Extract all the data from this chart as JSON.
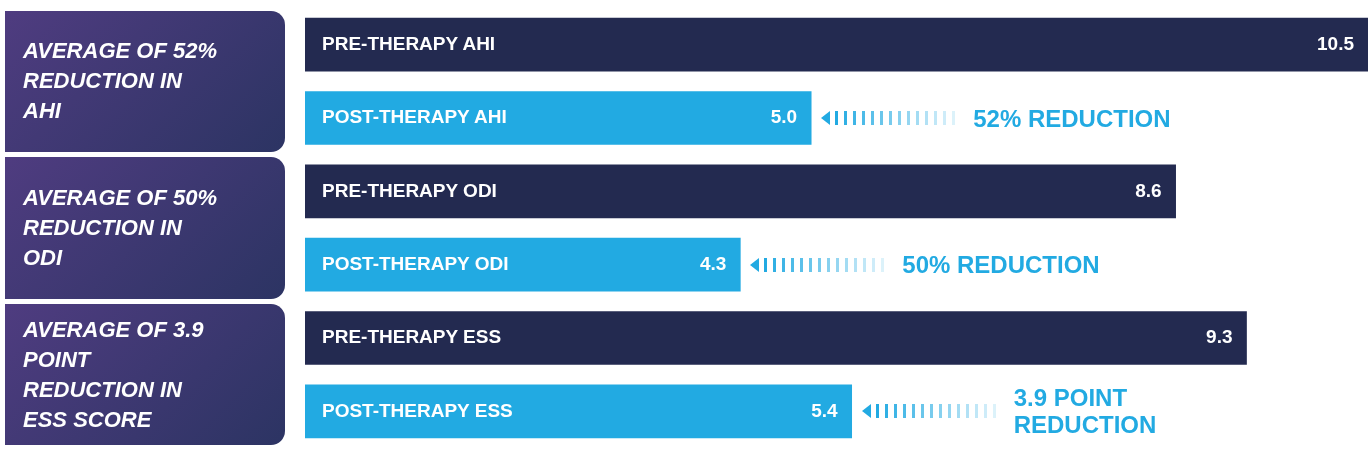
{
  "chart_data": {
    "type": "bar",
    "orientation": "horizontal",
    "categories": [
      "PRE-THERAPY AHI",
      "POST-THERAPY AHI",
      "PRE-THERAPY ODI",
      "POST-THERAPY ODI",
      "PRE-THERAPY ESS",
      "POST-THERAPY ESS"
    ],
    "values": [
      10.5,
      5.0,
      8.6,
      4.3,
      9.3,
      5.4
    ],
    "value_labels": [
      "10.5",
      "5.0",
      "8.6",
      "4.3",
      "9.3",
      "5.4"
    ],
    "colors": [
      "#232a50",
      "#22aae2",
      "#232a50",
      "#22aae2",
      "#232a50",
      "#22aae2"
    ],
    "xlim": [
      0,
      10.5
    ],
    "legend": false,
    "annotations": [
      "AVERAGE OF 52% REDUCTION IN AHI",
      "AVERAGE OF 50% REDUCTION IN ODI",
      "AVERAGE OF 3.9 POINT REDUCTION IN ESS SCORE",
      "52% REDUCTION",
      "50% REDUCTION",
      "3.9 POINT REDUCTION"
    ]
  }
}
